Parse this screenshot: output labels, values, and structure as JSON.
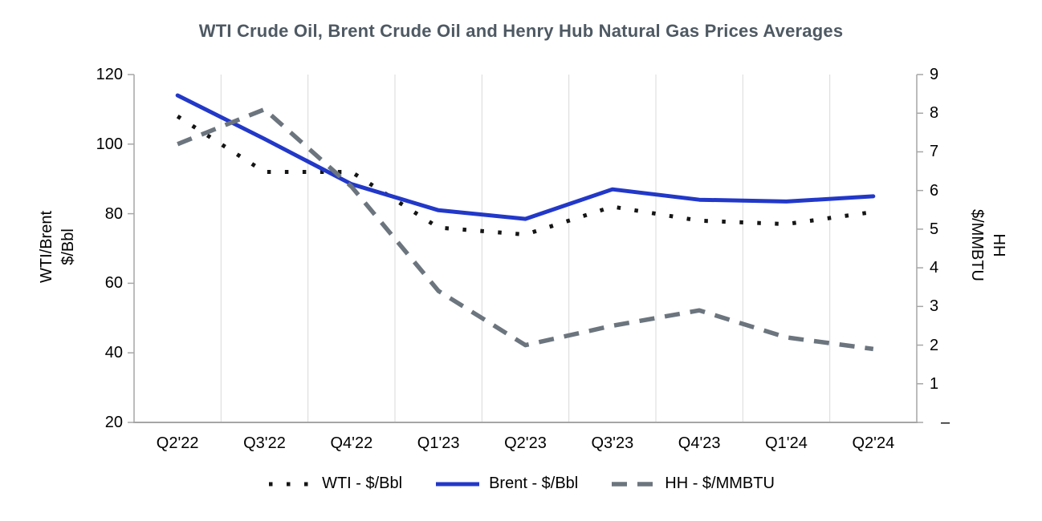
{
  "title": "WTI Crude Oil, Brent Crude Oil and Henry Hub Natural Gas Prices Averages",
  "left_axis": {
    "title_line1": "WTI/Brent",
    "title_line2": "$/Bbl",
    "ticks": [
      "120",
      "100",
      "80",
      "60",
      "40",
      "20"
    ]
  },
  "right_axis": {
    "title_line1": "HH",
    "title_line2": "$/MMBTU",
    "ticks": [
      "9",
      "8",
      "7",
      "6",
      "5",
      "4",
      "3",
      "2",
      "1",
      "–"
    ]
  },
  "chart_data": {
    "type": "line",
    "title": "WTI Crude Oil, Brent Crude Oil and Henry Hub Natural Gas Prices Averages",
    "categories": [
      "Q2'22",
      "Q3'22",
      "Q4'22",
      "Q1'23",
      "Q2'23",
      "Q3'23",
      "Q4'23",
      "Q1'24",
      "Q2'24"
    ],
    "series": [
      {
        "name": "WTI - $/Bbl",
        "axis": "left",
        "style": "dotted",
        "color": "#151515",
        "values": [
          108,
          92,
          92,
          76,
          74,
          82,
          78,
          77,
          80.5
        ]
      },
      {
        "name": "Brent - $/Bbl",
        "axis": "left",
        "style": "solid",
        "color": "#2238c8",
        "values": [
          114,
          101.5,
          88.5,
          81,
          78.5,
          87,
          84,
          83.5,
          85
        ]
      },
      {
        "name": "HH - $/MMBTU",
        "axis": "right",
        "style": "dashed",
        "color": "#6c757e",
        "values": [
          7.2,
          8.1,
          6.1,
          3.4,
          2,
          2.5,
          2.9,
          2.2,
          1.9
        ]
      }
    ],
    "left_ylim": [
      20,
      120
    ],
    "right_ylim": [
      0,
      9
    ],
    "left_tick_step": 20,
    "right_tick_step": 1,
    "grid": "vertical-only",
    "legend_position": "bottom"
  },
  "colors": {
    "title_text": "#4e5963",
    "axis_line": "#a6a6a6",
    "gridline": "#d9d9d9",
    "tick_text": "#000000",
    "background": "#ffffff"
  }
}
